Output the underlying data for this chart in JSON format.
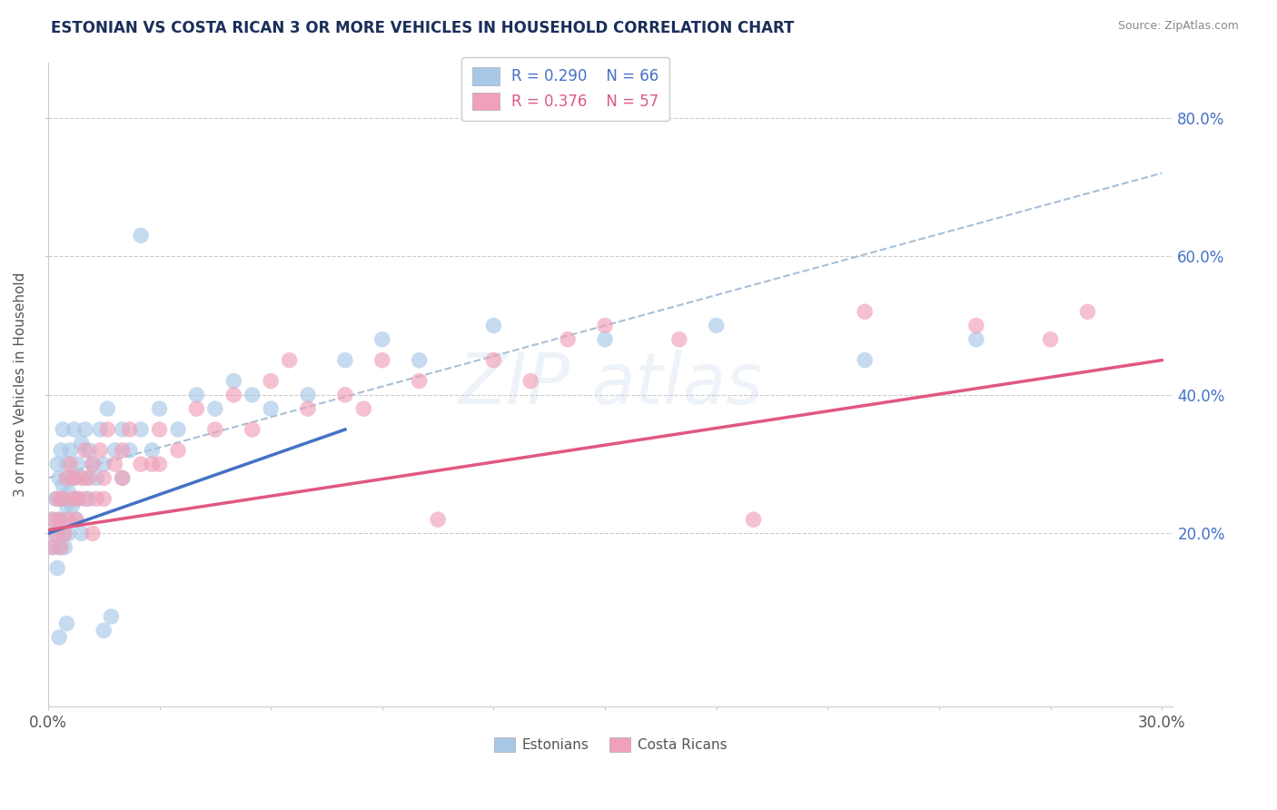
{
  "title": "ESTONIAN VS COSTA RICAN 3 OR MORE VEHICLES IN HOUSEHOLD CORRELATION CHART",
  "source": "Source: ZipAtlas.com",
  "ylabel": "3 or more Vehicles in Household",
  "xmin": 0.0,
  "xmax": 30.0,
  "ymin": -5.0,
  "ymax": 88.0,
  "yticks": [
    20.0,
    40.0,
    60.0,
    80.0
  ],
  "ytick_labels": [
    "20.0%",
    "40.0%",
    "60.0%",
    "80.0%"
  ],
  "legend_r1": "R = 0.290",
  "legend_n1": "N = 66",
  "legend_r2": "R = 0.376",
  "legend_n2": "N = 57",
  "legend_label1": "Estonians",
  "legend_label2": "Costa Ricans",
  "color_blue": "#a8c8e8",
  "color_pink": "#f0a0b8",
  "color_blue_line": "#4472c4",
  "color_pink_line": "#e05880",
  "color_dashed": "#a0b8d0",
  "blue_trend_x0": 0.0,
  "blue_trend_y0": 20.0,
  "blue_trend_x1": 8.0,
  "blue_trend_y1": 35.0,
  "pink_trend_x0": 0.0,
  "pink_trend_y0": 20.5,
  "pink_trend_x1": 30.0,
  "pink_trend_y1": 45.0,
  "dash_trend_x0": 0.0,
  "dash_trend_y0": 28.0,
  "dash_trend_x1": 30.0,
  "dash_trend_y1": 72.0,
  "est_x": [
    0.1,
    0.15,
    0.2,
    0.2,
    0.25,
    0.25,
    0.3,
    0.3,
    0.3,
    0.35,
    0.35,
    0.4,
    0.4,
    0.4,
    0.45,
    0.45,
    0.5,
    0.5,
    0.55,
    0.55,
    0.6,
    0.6,
    0.65,
    0.7,
    0.7,
    0.75,
    0.8,
    0.8,
    0.9,
    0.9,
    1.0,
    1.0,
    1.1,
    1.1,
    1.2,
    1.3,
    1.4,
    1.5,
    1.6,
    1.8,
    2.0,
    2.0,
    2.2,
    2.5,
    2.8,
    3.0,
    3.5,
    4.0,
    4.5,
    5.0,
    5.5,
    6.0,
    7.0,
    2.5,
    8.0,
    9.0,
    10.0,
    12.0,
    15.0,
    18.0,
    22.0,
    25.0,
    0.3,
    0.5,
    1.5,
    1.7
  ],
  "est_y": [
    22.0,
    18.0,
    20.0,
    25.0,
    30.0,
    15.0,
    28.0,
    22.0,
    18.0,
    25.0,
    32.0,
    20.0,
    27.0,
    35.0,
    22.0,
    18.0,
    30.0,
    24.0,
    26.0,
    20.0,
    32.0,
    28.0,
    24.0,
    35.0,
    28.0,
    22.0,
    30.0,
    25.0,
    33.0,
    20.0,
    35.0,
    28.0,
    32.0,
    25.0,
    30.0,
    28.0,
    35.0,
    30.0,
    38.0,
    32.0,
    35.0,
    28.0,
    32.0,
    35.0,
    32.0,
    38.0,
    35.0,
    40.0,
    38.0,
    42.0,
    40.0,
    38.0,
    40.0,
    63.0,
    45.0,
    48.0,
    45.0,
    50.0,
    48.0,
    50.0,
    45.0,
    48.0,
    5.0,
    7.0,
    6.0,
    8.0
  ],
  "cr_x": [
    0.1,
    0.15,
    0.2,
    0.25,
    0.3,
    0.35,
    0.4,
    0.45,
    0.5,
    0.55,
    0.6,
    0.65,
    0.7,
    0.75,
    0.8,
    0.9,
    1.0,
    1.0,
    1.1,
    1.2,
    1.3,
    1.4,
    1.5,
    1.6,
    1.8,
    2.0,
    2.2,
    2.5,
    3.0,
    3.5,
    4.0,
    5.0,
    5.5,
    6.0,
    7.0,
    8.0,
    9.0,
    10.0,
    12.0,
    14.0,
    15.0,
    17.0,
    19.0,
    22.0,
    25.0,
    27.0,
    28.0,
    3.0,
    2.0,
    1.5,
    6.5,
    8.5,
    10.5,
    13.0,
    4.5,
    2.8,
    1.2
  ],
  "cr_y": [
    18.0,
    22.0,
    20.0,
    25.0,
    22.0,
    18.0,
    25.0,
    20.0,
    28.0,
    22.0,
    30.0,
    25.0,
    28.0,
    22.0,
    25.0,
    28.0,
    32.0,
    25.0,
    28.0,
    30.0,
    25.0,
    32.0,
    28.0,
    35.0,
    30.0,
    32.0,
    35.0,
    30.0,
    35.0,
    32.0,
    38.0,
    40.0,
    35.0,
    42.0,
    38.0,
    40.0,
    45.0,
    42.0,
    45.0,
    48.0,
    50.0,
    48.0,
    22.0,
    52.0,
    50.0,
    48.0,
    52.0,
    30.0,
    28.0,
    25.0,
    45.0,
    38.0,
    22.0,
    42.0,
    35.0,
    30.0,
    20.0
  ]
}
